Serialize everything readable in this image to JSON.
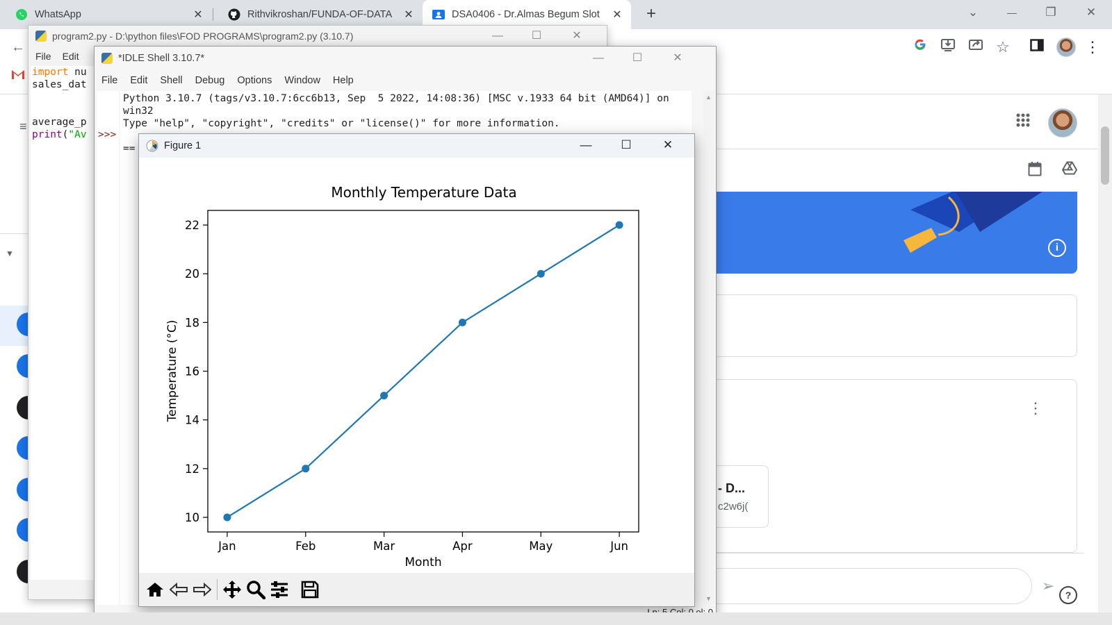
{
  "browser": {
    "tabs": [
      {
        "title": "WhatsApp",
        "icon": "whatsapp-icon",
        "color": "#25d366"
      },
      {
        "title": "Rithvikroshan/FUNDA-OF-DATA",
        "icon": "github-icon"
      },
      {
        "title": "DSA0406 - Dr.Almas Begum Slot",
        "icon": "classroom-icon",
        "color": "#1a73e8",
        "active": true
      }
    ],
    "new_tab": "+",
    "window_controls": {
      "dropdown": "⌄",
      "minimize": "—",
      "restore": "❐",
      "close": "✕"
    }
  },
  "classroom": {
    "card_title": "- D...",
    "card_sub": "c2w6j("
  },
  "editor": {
    "title": "program2.py - D:\\python files\\FOD PROGRAMS\\program2.py (3.10.7)",
    "menu": [
      "File",
      "Edit"
    ],
    "code": {
      "l1_kw": "import",
      "l1_rest": " nu",
      "l2": "sales_dat",
      "l5": "average_p",
      "l6_bi": "print",
      "l6_p": "(",
      "l6_str": "\"Av"
    }
  },
  "shell": {
    "title": "*IDLE Shell 3.10.7*",
    "menu": [
      "File",
      "Edit",
      "Shell",
      "Debug",
      "Options",
      "Window",
      "Help"
    ],
    "banner_line1": "Python 3.10.7 (tags/v3.10.7:6cc6b13, Sep  5 2022, 14:08:36) [MSC v.1933 64 bit (AMD64)] on win32",
    "banner_line2": "Type \"help\", \"copyright\", \"credits\" or \"license()\" for more information.",
    "restart_prefix": "==",
    "prompt": ">>>",
    "status": "Ln: 5  Col: 0 ol: 0"
  },
  "figure": {
    "title": "Figure 1",
    "toolbar": [
      "home-icon",
      "back-icon",
      "forward-icon",
      "pan-icon",
      "zoom-icon",
      "configure-icon",
      "save-icon"
    ]
  },
  "chart_data": {
    "type": "line",
    "title": "Monthly Temperature Data",
    "xlabel": "Month",
    "ylabel": "Temperature (°C)",
    "categories": [
      "Jan",
      "Feb",
      "Mar",
      "Apr",
      "May",
      "Jun"
    ],
    "values": [
      10,
      12,
      15,
      18,
      20,
      22
    ],
    "ylim": [
      9.4,
      22.6
    ],
    "yticks": [
      10,
      12,
      14,
      16,
      18,
      20,
      22
    ],
    "marker": "circle",
    "color": "#1f77b4",
    "grid": false
  }
}
